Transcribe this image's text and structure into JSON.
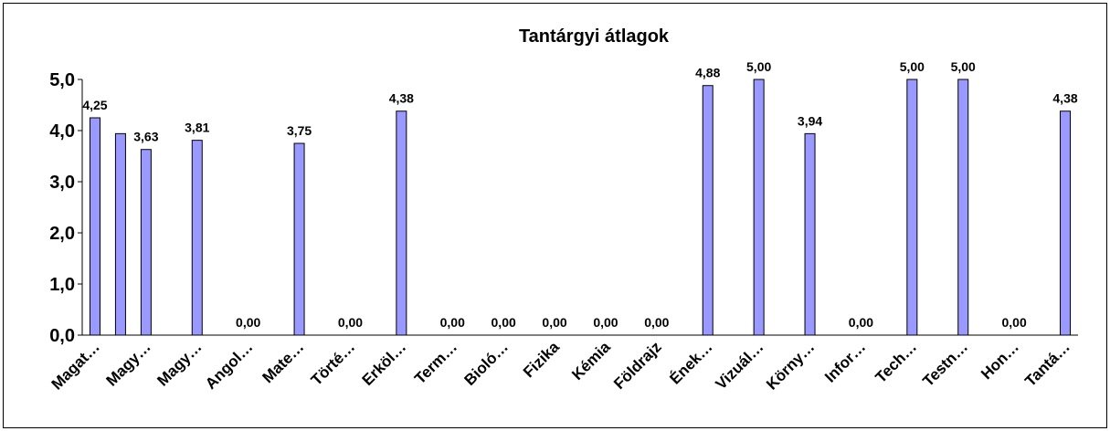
{
  "chart_data": {
    "type": "bar",
    "title": "Tantárgyi átlagok",
    "categories": [
      "Magat…",
      null,
      "Magy…",
      null,
      "Magy…",
      null,
      "Angol…",
      null,
      "Mate…",
      null,
      "Törté…",
      null,
      "Erköl…",
      null,
      "Term…",
      null,
      "Bioló…",
      null,
      "Fizika",
      null,
      "Kémia",
      null,
      "Földrajz",
      null,
      "Ének…",
      null,
      "Vizuál…",
      null,
      "Körny…",
      null,
      "Infor…",
      null,
      "Tech…",
      null,
      "Testn…",
      null,
      "Hon…",
      null,
      "Tantá…"
    ],
    "values": [
      4.25,
      3.94,
      3.63,
      null,
      3.81,
      null,
      0,
      null,
      3.75,
      null,
      0,
      null,
      4.38,
      null,
      0,
      null,
      0,
      null,
      0,
      null,
      0,
      null,
      0,
      null,
      4.88,
      null,
      5,
      null,
      3.94,
      null,
      0,
      null,
      5,
      null,
      5,
      null,
      0,
      null,
      4.38
    ],
    "value_labels": [
      "4,25",
      null,
      "3,63",
      null,
      "3,81",
      null,
      "0,00",
      null,
      "3,75",
      null,
      "0,00",
      null,
      "4,38",
      null,
      "0,00",
      null,
      "0,00",
      null,
      "0,00",
      null,
      "0,00",
      null,
      "0,00",
      null,
      "4,88",
      null,
      "5,00",
      null,
      "3,94",
      null,
      "0,00",
      null,
      "5,00",
      null,
      "5,00",
      null,
      "0,00",
      null,
      "4,38"
    ],
    "color": "#9999ff",
    "ylim": [
      0,
      5
    ],
    "yticks": [
      {
        "value": 0,
        "label": "0,0"
      },
      {
        "value": 1,
        "label": "1,0"
      },
      {
        "value": 2,
        "label": "2,0"
      },
      {
        "value": 3,
        "label": "3,0"
      },
      {
        "value": 4,
        "label": "4,0"
      },
      {
        "value": 5,
        "label": "5,0"
      }
    ],
    "grid": false
  }
}
